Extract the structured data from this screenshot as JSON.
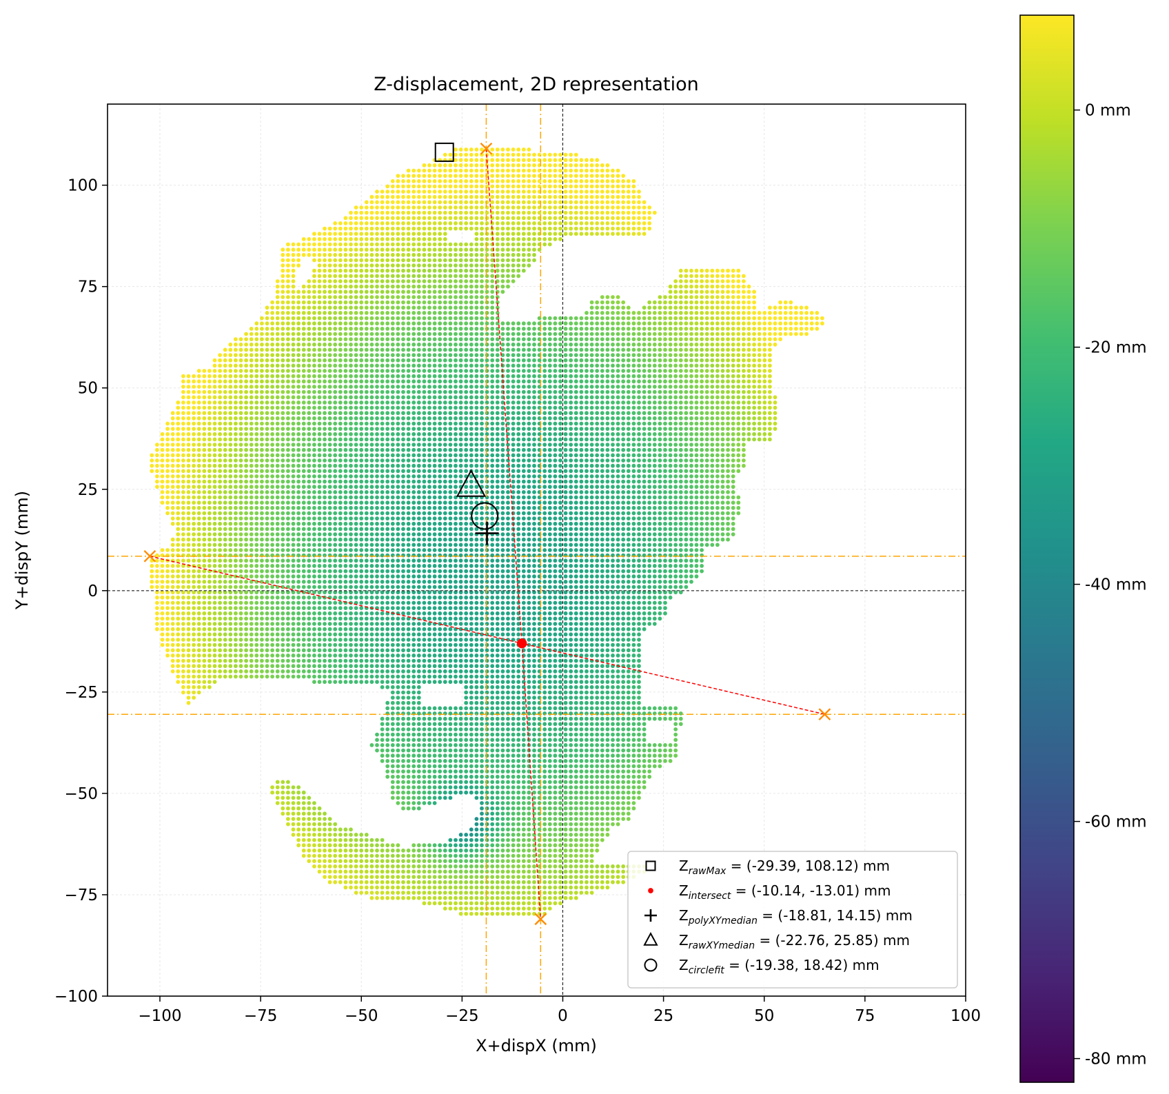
{
  "chart_data": {
    "type": "scatter",
    "title": "Z-displacement, 2D representation",
    "xlabel": "X+dispX (mm)",
    "ylabel": "Y+dispY (mm)",
    "xlim": [
      -113,
      100
    ],
    "ylim": [
      -100,
      120
    ],
    "xticks": [
      -100,
      -75,
      -50,
      -25,
      0,
      25,
      50,
      75,
      100
    ],
    "yticks": [
      -100,
      -75,
      -50,
      -25,
      0,
      25,
      50,
      75,
      100
    ],
    "xtick_labels": [
      "−100",
      "−75",
      "−50",
      "−25",
      "0",
      "25",
      "50",
      "75",
      "100"
    ],
    "ytick_labels": [
      "−100",
      "−75",
      "−50",
      "−25",
      "0",
      "25",
      "50",
      "75",
      "100"
    ],
    "grid": true,
    "legend_position": "lower-right",
    "colorbar": {
      "colormap": "viridis",
      "range": [
        -82,
        8
      ],
      "ticks": [
        0,
        -20,
        -40,
        -60,
        -80
      ],
      "tick_labels": [
        "0 mm",
        "-20 mm",
        "-40 mm",
        "-60 mm",
        "-80 mm"
      ]
    },
    "surface_points": {
      "description_hidden": true,
      "x_range": [
        -102,
        65
      ],
      "y_range": [
        -81,
        109
      ],
      "z_range": [
        -55,
        8
      ]
    },
    "reference_lines": {
      "zero_x": 0,
      "zero_y": 0,
      "vertical_dashdot_x": [
        -19,
        -5.5
      ],
      "horizontal_dashdot_y": [
        8.5,
        -30.5
      ]
    },
    "extreme_points": [
      {
        "x": -19,
        "y": 109
      },
      {
        "x": -5.5,
        "y": -81
      },
      {
        "x": -102.5,
        "y": 8.5
      },
      {
        "x": 65,
        "y": -30.5
      }
    ],
    "fit_lines": [
      {
        "points": [
          [
            -19,
            109
          ],
          [
            -10.14,
            -13.01
          ],
          [
            -5.5,
            -81
          ]
        ]
      },
      {
        "points": [
          [
            -102.5,
            8.5
          ],
          [
            -10.14,
            -13.01
          ],
          [
            65,
            -30.5
          ]
        ]
      }
    ],
    "markers": [
      {
        "key": "rawMax",
        "marker": "square",
        "x": -29.39,
        "y": 108.12,
        "label_main": "Z",
        "label_sub": "rawMax",
        "label_rest": " = (-29.39, 108.12) mm"
      },
      {
        "key": "intersect",
        "marker": "dot",
        "x": -10.14,
        "y": -13.01,
        "label_main": "Z",
        "label_sub": "intersect",
        "label_rest": " = (-10.14, -13.01) mm"
      },
      {
        "key": "polyXYmedian",
        "marker": "plus",
        "x": -18.81,
        "y": 14.15,
        "label_main": "Z",
        "label_sub": "polyXYmedian",
        "label_rest": " = (-18.81, 14.15) mm"
      },
      {
        "key": "rawXYmedian",
        "marker": "triangle",
        "x": -22.76,
        "y": 25.85,
        "label_main": "Z",
        "label_sub": "rawXYmedian",
        "label_rest": " = (-22.76, 25.85) mm"
      },
      {
        "key": "circlefit",
        "marker": "circle",
        "x": -19.38,
        "y": 18.42,
        "label_main": "Z",
        "label_sub": "circlefit",
        "label_rest": " = (-19.38, 18.42) mm"
      }
    ],
    "colors": {
      "reference_dashdot": "#ffa500",
      "extreme_marker": "#ff8c00",
      "fit_line": "#ff0000",
      "intersect_dot": "#ff0000",
      "zero_line": "#000000"
    }
  }
}
